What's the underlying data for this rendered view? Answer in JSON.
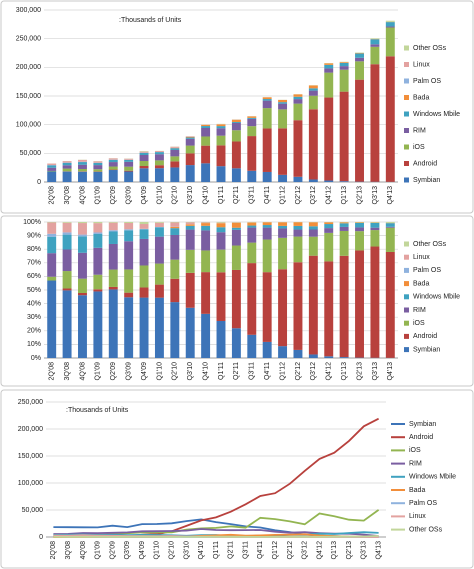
{
  "chart_data": [
    {
      "type": "bar",
      "stacking": "normal",
      "annotation": ":Thousands of Units",
      "categories": [
        "2Q'08",
        "3Q'08",
        "4Q'08",
        "Q1'09",
        "Q2'09",
        "Q3'09",
        "Q4'09",
        "Q1'10",
        "Q2'10",
        "Q3'10",
        "Q4'10",
        "Q1'11",
        "Q2'11",
        "Q3'11",
        "Q4'11",
        "Q1'12",
        "Q2'12",
        "Q3'12",
        "Q4'12",
        "Q1'13",
        "Q2'13",
        "Q3'13",
        "Q4'13"
      ],
      "series": [
        {
          "name": "Symbian",
          "color": "#3d74b8",
          "values": [
            18400,
            18200,
            17950,
            17800,
            20900,
            18300,
            23900,
            24100,
            25400,
            29500,
            32600,
            27600,
            23900,
            19600,
            17500,
            12500,
            9100,
            4400,
            2600,
            1400,
            600,
            460,
            300
          ]
        },
        {
          "name": "Android",
          "color": "#b8413d",
          "values": [
            0,
            500,
            640,
            575,
            760,
            1400,
            4000,
            5200,
            10600,
            20500,
            30800,
            36300,
            46800,
            60500,
            75900,
            81100,
            98700,
            122500,
            144700,
            156200,
            177900,
            205000,
            219000
          ]
        },
        {
          "name": "iOS",
          "color": "#93b551",
          "values": [
            900,
            4700,
            4100,
            3900,
            5300,
            7000,
            8700,
            8400,
            8700,
            13500,
            16000,
            16900,
            19600,
            17300,
            35500,
            33100,
            28900,
            23600,
            43500,
            38300,
            32000,
            30300,
            50200
          ]
        },
        {
          "name": "RIM",
          "color": "#7a5ea1",
          "values": [
            5600,
            5800,
            7400,
            7200,
            7800,
            8500,
            10500,
            10750,
            11200,
            11900,
            14800,
            13000,
            12600,
            12700,
            13000,
            9900,
            7900,
            8900,
            7300,
            6200,
            6200,
            4400,
            1800
          ]
        },
        {
          "name": "Windows Mbile",
          "color": "#3fa2c0",
          "values": [
            3900,
            4000,
            4700,
            3700,
            3800,
            3300,
            3800,
            3700,
            3100,
            2200,
            3400,
            3700,
            1700,
            1700,
            2800,
            2700,
            4100,
            4000,
            6200,
            5600,
            7400,
            8900,
            7600
          ]
        },
        {
          "name": "Bada",
          "color": "#f28e3a",
          "values": [
            0,
            0,
            0,
            0,
            0,
            0,
            0,
            0,
            600,
            900,
            2000,
            3000,
            4000,
            2500,
            3000,
            3800,
            4200,
            5000,
            2700,
            1400,
            800,
            600,
            400
          ]
        },
        {
          "name": "Palm OS",
          "color": "#8fb2de",
          "values": [
            700,
            600,
            500,
            400,
            400,
            300,
            200,
            150,
            100,
            50,
            0,
            0,
            0,
            0,
            0,
            0,
            0,
            0,
            0,
            0,
            0,
            0,
            0
          ]
        },
        {
          "name": "Linux",
          "color": "#e3a2a0",
          "values": [
            2700,
            2600,
            3300,
            2500,
            2300,
            1900,
            1900,
            1700,
            1900,
            1100,
            500,
            400,
            300,
            200,
            100,
            100,
            0,
            0,
            0,
            0,
            0,
            0,
            0
          ]
        },
        {
          "name": "Other OSs",
          "color": "#c2d69a",
          "values": [
            100,
            200,
            300,
            300,
            200,
            300,
            800,
            300,
            200,
            200,
            300,
            500,
            300,
            300,
            200,
            200,
            200,
            300,
            400,
            600,
            800,
            1000,
            2000
          ]
        }
      ],
      "ylim": [
        0,
        300000
      ],
      "yticks": [
        0,
        {
          "value": 50000,
          "label": "50,000"
        },
        {
          "value": 100000,
          "label": "100,000"
        },
        {
          "value": 150000,
          "label": "150,000"
        },
        {
          "value": 200000,
          "label": "200,000"
        },
        {
          "value": 250000,
          "label": "250,000"
        },
        {
          "value": 300000,
          "label": "300,000"
        }
      ],
      "grid": true,
      "legend": "right"
    },
    {
      "type": "bar",
      "stacking": "percent",
      "ylim": [
        0,
        100
      ],
      "yticks": [
        {
          "value": 0,
          "label": "0%"
        },
        {
          "value": 10,
          "label": "10%"
        },
        {
          "value": 20,
          "label": "20%"
        },
        {
          "value": 30,
          "label": "30%"
        },
        {
          "value": 40,
          "label": "40%"
        },
        {
          "value": 50,
          "label": "50%"
        },
        {
          "value": 60,
          "label": "60%"
        },
        {
          "value": 70,
          "label": "70%"
        },
        {
          "value": 80,
          "label": "80%"
        },
        {
          "value": 90,
          "label": "90%"
        },
        {
          "value": 100,
          "label": "100%"
        }
      ],
      "grid": true,
      "legend": "right"
    },
    {
      "type": "line",
      "annotation": ":Thousands of Units",
      "ylim": [
        0,
        250000
      ],
      "yticks": [
        0,
        {
          "value": 50000,
          "label": "50,000"
        },
        {
          "value": 100000,
          "label": "100,000"
        },
        {
          "value": 150000,
          "label": "150,000"
        },
        {
          "value": 200000,
          "label": "200,000"
        },
        {
          "value": 250000,
          "label": "250,000"
        }
      ],
      "grid": true,
      "legend": "right"
    }
  ]
}
